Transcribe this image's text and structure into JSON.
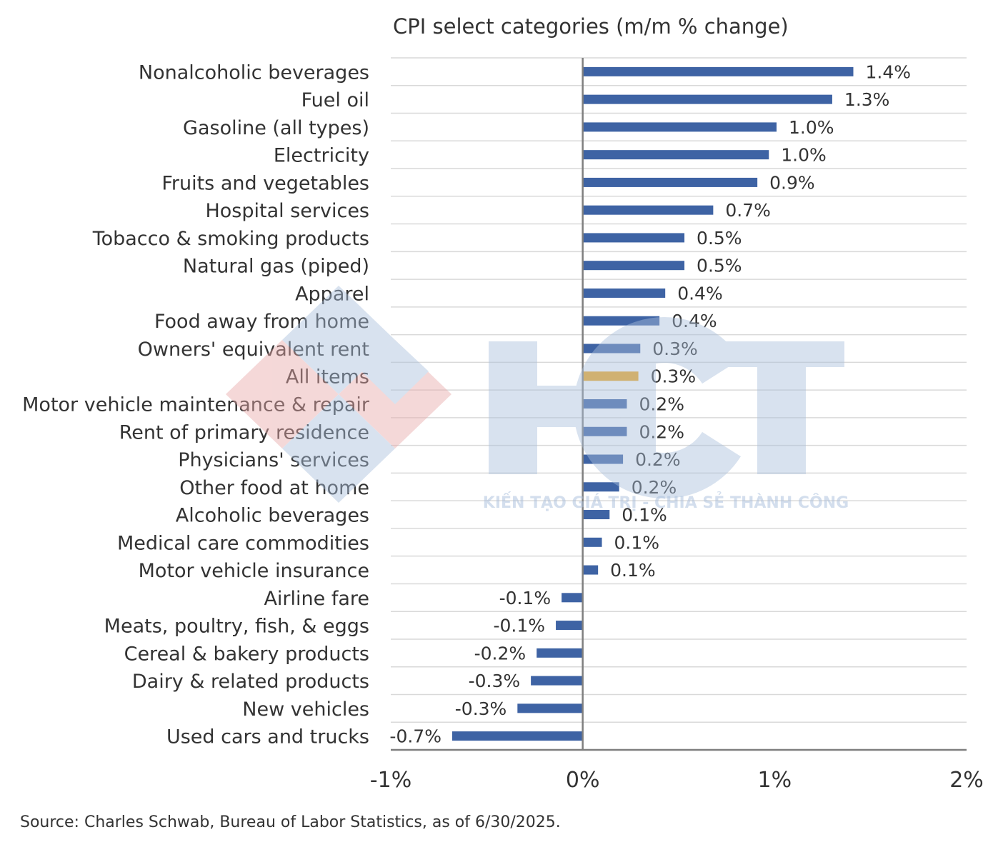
{
  "chart_data": {
    "type": "bar",
    "orientation": "horizontal",
    "title": "CPI select categories (m/m % change)",
    "categories": [
      "Nonalcoholic beverages",
      "Fuel oil",
      "Gasoline (all types)",
      "Electricity",
      "Fruits and vegetables",
      "Hospital services",
      "Tobacco & smoking products",
      "Natural gas (piped)",
      "Apparel",
      "Food away from home",
      "Owners' equivalent rent",
      "All items",
      "Motor vehicle maintenance & repair",
      "Rent of primary residence",
      "Physicians' services",
      "Other food at home",
      "Alcoholic beverages",
      "Medical care commodities",
      "Motor vehicle insurance",
      "Airline fare",
      "Meats, poultry, fish, & eggs",
      "Cereal & bakery products",
      "Dairy & related products",
      "New vehicles",
      "Used cars and trucks"
    ],
    "values": [
      1.41,
      1.3,
      1.01,
      0.97,
      0.91,
      0.68,
      0.53,
      0.53,
      0.43,
      0.4,
      0.3,
      0.29,
      0.23,
      0.23,
      0.21,
      0.19,
      0.14,
      0.1,
      0.08,
      -0.11,
      -0.14,
      -0.24,
      -0.27,
      -0.34,
      -0.68
    ],
    "labels": [
      "1.4%",
      "1.3%",
      "1.0%",
      "1.0%",
      "0.9%",
      "0.7%",
      "0.5%",
      "0.5%",
      "0.4%",
      "0.4%",
      "0.3%",
      "0.3%",
      "0.2%",
      "0.2%",
      "0.2%",
      "0.2%",
      "0.1%",
      "0.1%",
      "0.1%",
      "-0.1%",
      "-0.1%",
      "-0.2%",
      "-0.3%",
      "-0.3%",
      "-0.7%"
    ],
    "highlight_index": 11,
    "xlim": [
      -1,
      2
    ],
    "xticks": [
      -1,
      0,
      1,
      2
    ],
    "xtick_labels": [
      "-1%",
      "0%",
      "1%",
      "2%"
    ],
    "grid": true,
    "colors": {
      "bar": "#3e63a4",
      "highlight": "#f2a71b",
      "grid": "#d9d9d9",
      "axis": "#7f7f7f"
    }
  },
  "source_note": "Source: Charles Schwab, Bureau of Labor Statistics, as of  6/30/2025.",
  "watermark": {
    "text": "HCT",
    "tagline": "KIẾN TẠO GIÁ TRỊ - CHIA SẺ THÀNH CÔNG",
    "colors": {
      "blue": "#a9bfdc",
      "red": "#e8a9a9"
    }
  }
}
